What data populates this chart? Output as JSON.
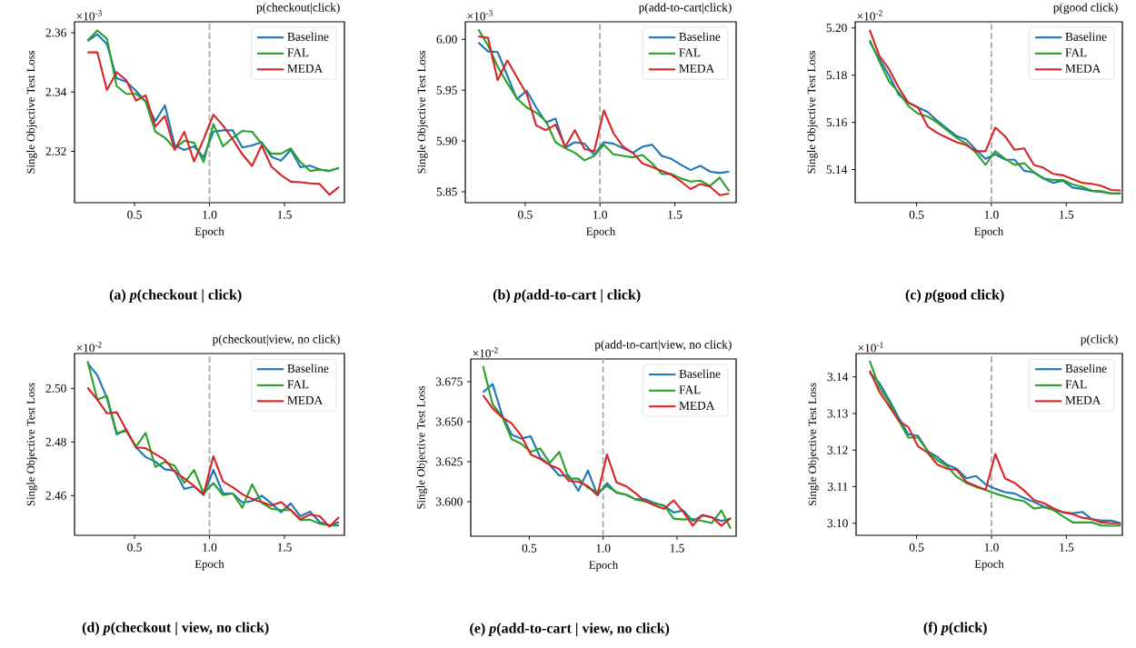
{
  "chart_data": [
    {
      "type": "line",
      "title": "(a) *p*(checkout | click)",
      "subtitle": "p(checkout|click)",
      "xlabel": "Epoch",
      "ylabel": "Single Objective Test Loss",
      "annotations": [
        "×10$^{-3}$"
      ],
      "x": [
        0.187,
        0.252,
        0.316,
        0.381,
        0.445,
        0.51,
        0.574,
        0.639,
        0.703,
        0.768,
        0.832,
        0.897,
        0.961,
        1.026,
        1.09,
        1.155,
        1.219,
        1.284,
        1.348,
        1.413,
        1.477,
        1.542,
        1.606,
        1.671,
        1.735,
        1.8,
        1.864
      ],
      "series": [
        {
          "name": "Baseline",
          "color": "#1f77b4",
          "values": [
            2.3572,
            2.3595,
            2.3562,
            2.3447,
            2.3435,
            2.3404,
            2.3368,
            2.3302,
            2.3355,
            2.322,
            2.3205,
            2.3217,
            2.318,
            2.3267,
            2.3271,
            2.3271,
            2.3213,
            2.322,
            2.3231,
            2.3182,
            2.3169,
            2.3205,
            2.3147,
            2.3152,
            2.3139,
            2.3134,
            2.3144
          ]
        },
        {
          "name": "FAL",
          "color": "#2ca02c",
          "values": [
            2.3574,
            2.3608,
            2.358,
            2.342,
            2.3394,
            2.3394,
            2.3368,
            2.3266,
            2.3246,
            2.321,
            2.3236,
            2.3229,
            2.3164,
            2.3292,
            2.3217,
            2.3246,
            2.3269,
            2.3266,
            2.3226,
            2.3192,
            2.3192,
            2.321,
            2.3164,
            2.3134,
            2.3139,
            2.3134,
            2.3144
          ]
        },
        {
          "name": "MEDA",
          "color": "#d62728",
          "values": [
            2.3534,
            2.3534,
            2.3407,
            2.3467,
            2.344,
            2.3371,
            2.3389,
            2.3284,
            2.3319,
            2.3205,
            2.3266,
            2.3166,
            2.3241,
            2.3324,
            2.3287,
            2.3241,
            2.319,
            2.3151,
            2.322,
            2.3149,
            2.312,
            2.3098,
            2.3096,
            2.3092,
            2.309,
            2.3054,
            2.308
          ]
        }
      ],
      "xlim": [
        0.1,
        1.9
      ],
      "ylim": [
        2.3027,
        2.3637
      ],
      "xticks": [
        {
          "value": 0.5,
          "label": "0.5"
        },
        {
          "value": 1.0,
          "label": "1.0"
        },
        {
          "value": 1.5,
          "label": "1.5"
        }
      ],
      "yticks": [
        {
          "value": 2.32,
          "label": "2.32"
        },
        {
          "value": 2.34,
          "label": "2.34"
        },
        {
          "value": 2.36,
          "label": "2.36"
        }
      ],
      "legend": "top right",
      "ref_lines": [
        {
          "axis": "x",
          "value": 1.0,
          "color": "#b0b0b0",
          "line_style": "dashed"
        }
      ]
    },
    {
      "type": "line",
      "title": "(b) *p*(add-to-cart | click)",
      "subtitle": "p(add-to-cart|click)",
      "xlabel": "Epoch",
      "ylabel": "Single Objective Test Loss",
      "annotations": [
        "×10$^{-3}$"
      ],
      "x": [
        0.187,
        0.252,
        0.316,
        0.381,
        0.445,
        0.51,
        0.574,
        0.639,
        0.703,
        0.768,
        0.832,
        0.897,
        0.961,
        1.026,
        1.09,
        1.155,
        1.219,
        1.284,
        1.348,
        1.413,
        1.477,
        1.542,
        1.606,
        1.671,
        1.735,
        1.8,
        1.864
      ],
      "series": [
        {
          "name": "Baseline",
          "color": "#1f77b4",
          "values": [
            5.997,
            5.9881,
            5.9875,
            5.9643,
            5.9411,
            5.9494,
            5.933,
            5.9182,
            5.922,
            5.8934,
            5.8988,
            5.8973,
            5.8863,
            5.8988,
            5.8973,
            5.8929,
            5.8884,
            5.8943,
            5.8964,
            5.8854,
            5.8824,
            5.8765,
            5.8714,
            5.8756,
            5.8699,
            5.8685,
            5.8699
          ]
        },
        {
          "name": "FAL",
          "color": "#2ca02c",
          "values": [
            6.0098,
            5.994,
            5.9732,
            5.9568,
            5.942,
            5.933,
            5.928,
            5.9196,
            5.8988,
            5.8929,
            5.8884,
            5.881,
            5.8854,
            5.8964,
            5.8869,
            5.8854,
            5.8839,
            5.8863,
            5.878,
            5.8676,
            5.8676,
            5.8631,
            5.8601,
            5.861,
            5.8557,
            5.864,
            5.8506
          ]
        },
        {
          "name": "MEDA",
          "color": "#d62728",
          "values": [
            6.003,
            6.0015,
            5.9598,
            5.9792,
            5.9628,
            5.9464,
            5.9152,
            5.9107,
            5.9161,
            5.8943,
            5.9107,
            5.892,
            5.8899,
            5.9301,
            5.9077,
            5.8943,
            5.8884,
            5.878,
            5.8744,
            5.8705,
            5.8667,
            5.8601,
            5.8527,
            5.8577,
            5.8551,
            5.8467,
            5.8482
          ]
        }
      ],
      "xlim": [
        0.1,
        1.91
      ],
      "ylim": [
        5.8393,
        6.0173
      ],
      "xticks": [
        {
          "value": 0.5,
          "label": "0.5"
        },
        {
          "value": 1.0,
          "label": "1.0"
        },
        {
          "value": 1.5,
          "label": "1.5"
        }
      ],
      "yticks": [
        {
          "value": 5.85,
          "label": "5.85"
        },
        {
          "value": 5.9,
          "label": "5.90"
        },
        {
          "value": 5.95,
          "label": "5.95"
        },
        {
          "value": 6.0,
          "label": "6.00"
        }
      ],
      "legend": "top right",
      "ref_lines": [
        {
          "axis": "x",
          "value": 1.0,
          "color": "#b0b0b0",
          "line_style": "dashed"
        }
      ]
    },
    {
      "type": "line",
      "title": "(c) *p*(good click)",
      "subtitle": "p(good click)",
      "xlabel": "Epoch",
      "ylabel": "Single Objective Test Loss",
      "annotations": [
        "×10$^{-2}$"
      ],
      "x": [
        0.187,
        0.252,
        0.316,
        0.381,
        0.445,
        0.51,
        0.574,
        0.639,
        0.703,
        0.768,
        0.832,
        0.897,
        0.961,
        1.026,
        1.09,
        1.155,
        1.219,
        1.284,
        1.348,
        1.413,
        1.477,
        1.542,
        1.606,
        1.671,
        1.735,
        1.8,
        1.864
      ],
      "series": [
        {
          "name": "Baseline",
          "color": "#1f77b4",
          "values": [
            5.1941,
            5.1868,
            5.18,
            5.1717,
            5.1685,
            5.1663,
            5.1644,
            5.1606,
            5.1574,
            5.1542,
            5.1527,
            5.1484,
            5.1446,
            5.1465,
            5.1443,
            5.1442,
            5.1395,
            5.1388,
            5.1363,
            5.1344,
            5.1353,
            5.1324,
            5.1318,
            5.1309,
            5.1305,
            5.1299,
            5.1299
          ]
        },
        {
          "name": "FAL",
          "color": "#2ca02c",
          "values": [
            5.1949,
            5.1857,
            5.1774,
            5.1727,
            5.167,
            5.1637,
            5.1625,
            5.1599,
            5.1567,
            5.1535,
            5.151,
            5.1471,
            5.142,
            5.1478,
            5.1446,
            5.142,
            5.1427,
            5.1388,
            5.1363,
            5.1356,
            5.1356,
            5.1337,
            5.1327,
            5.1311,
            5.1309,
            5.1299,
            5.1299
          ]
        },
        {
          "name": "MEDA",
          "color": "#d62728",
          "values": [
            5.1992,
            5.1881,
            5.1826,
            5.1747,
            5.1683,
            5.1663,
            5.1583,
            5.1555,
            5.1535,
            5.1516,
            5.1504,
            5.1478,
            5.1478,
            5.1578,
            5.1542,
            5.1484,
            5.149,
            5.142,
            5.1408,
            5.1382,
            5.1376,
            5.136,
            5.1344,
            5.134,
            5.1331,
            5.1314,
            5.1312
          ]
        }
      ],
      "xlim": [
        0.09,
        1.875
      ],
      "ylim": [
        5.126,
        5.2026
      ],
      "xticks": [
        {
          "value": 0.5,
          "label": "0.5"
        },
        {
          "value": 1.0,
          "label": "1.0"
        },
        {
          "value": 1.5,
          "label": "1.5"
        }
      ],
      "yticks": [
        {
          "value": 5.14,
          "label": "5.14"
        },
        {
          "value": 5.16,
          "label": "5.16"
        },
        {
          "value": 5.18,
          "label": "5.18"
        },
        {
          "value": 5.2,
          "label": "5.20"
        }
      ],
      "legend": "top right",
      "ref_lines": [
        {
          "axis": "x",
          "value": 1.0,
          "color": "#b0b0b0",
          "line_style": "dashed"
        }
      ]
    },
    {
      "type": "line",
      "title": "(d) *p*(checkout | view, no click)",
      "subtitle": "p(checkout|view, no click)",
      "xlabel": "Epoch",
      "ylabel": "Single Objective Test Loss",
      "annotations": [
        "×10$^{-2}$"
      ],
      "x": [
        0.187,
        0.252,
        0.316,
        0.381,
        0.445,
        0.51,
        0.574,
        0.639,
        0.703,
        0.768,
        0.832,
        0.897,
        0.961,
        1.026,
        1.09,
        1.155,
        1.219,
        1.284,
        1.348,
        1.413,
        1.477,
        1.542,
        1.606,
        1.671,
        1.735,
        1.8,
        1.864
      ],
      "series": [
        {
          "name": "Baseline",
          "color": "#1f77b4",
          "values": [
            2.5094,
            2.5049,
            2.4964,
            2.4828,
            2.4847,
            2.478,
            2.4744,
            2.4727,
            2.4698,
            2.4693,
            2.4625,
            2.4634,
            2.4602,
            2.4696,
            2.4608,
            2.4608,
            2.4574,
            2.458,
            2.46,
            2.4571,
            2.4538,
            2.4571,
            2.4523,
            2.454,
            2.4501,
            2.4489,
            2.4501
          ]
        },
        {
          "name": "FAL",
          "color": "#2ca02c",
          "values": [
            2.5102,
            2.4958,
            2.4972,
            2.4834,
            2.484,
            2.4783,
            2.4834,
            2.4707,
            2.4726,
            2.4711,
            2.4647,
            2.4696,
            2.4608,
            2.4647,
            2.4602,
            2.4608,
            2.4555,
            2.4642,
            2.4574,
            2.4551,
            2.4546,
            2.4546,
            2.4509,
            2.451,
            2.4495,
            2.4489,
            2.4489
          ]
        },
        {
          "name": "MEDA",
          "color": "#d62728",
          "values": [
            2.5003,
            2.4958,
            2.4907,
            2.4911,
            2.4845,
            2.478,
            2.4777,
            2.4755,
            2.4734,
            2.4689,
            2.4664,
            2.4636,
            2.4605,
            2.4747,
            2.4653,
            2.4631,
            2.4605,
            2.4588,
            2.4576,
            2.4563,
            2.4576,
            2.4546,
            2.4512,
            2.4529,
            2.4523,
            2.4484,
            2.452
          ]
        }
      ],
      "xlim": [
        0.1,
        1.9
      ],
      "ylim": [
        2.4452,
        2.513
      ],
      "xticks": [
        {
          "value": 0.5,
          "label": "0.5"
        },
        {
          "value": 1.0,
          "label": "1.0"
        },
        {
          "value": 1.5,
          "label": "1.5"
        }
      ],
      "yticks": [
        {
          "value": 2.46,
          "label": "2.46"
        },
        {
          "value": 2.48,
          "label": "2.48"
        },
        {
          "value": 2.5,
          "label": "2.50"
        }
      ],
      "legend": "top right",
      "ref_lines": [
        {
          "axis": "x",
          "value": 1.0,
          "color": "#b0b0b0",
          "line_style": "dashed"
        }
      ]
    },
    {
      "type": "line",
      "title": "(e) *p*(add-to-cart | view, no click)",
      "subtitle": "p(add-to-cart|view, no click)",
      "xlabel": "Epoch",
      "ylabel": "Single Objective Test Loss",
      "annotations": [
        "×10$^{-2}$"
      ],
      "x": [
        0.187,
        0.252,
        0.316,
        0.381,
        0.445,
        0.51,
        0.574,
        0.639,
        0.703,
        0.768,
        0.832,
        0.897,
        0.961,
        1.026,
        1.09,
        1.155,
        1.219,
        1.284,
        1.348,
        1.413,
        1.477,
        1.542,
        1.606,
        1.671,
        1.735,
        1.8,
        1.864
      ],
      "series": [
        {
          "name": "Baseline",
          "color": "#1f77b4",
          "values": [
            3.6684,
            3.6735,
            3.6542,
            3.6419,
            3.6394,
            3.6409,
            3.6277,
            3.6229,
            3.6163,
            3.6163,
            3.6068,
            3.6195,
            3.604,
            3.6116,
            3.6055,
            3.6044,
            3.6015,
            3.6015,
            3.5992,
            3.5973,
            3.5932,
            3.5945,
            3.5879,
            3.5913,
            3.5902,
            3.5879,
            3.5894
          ]
        },
        {
          "name": "FAL",
          "color": "#2ca02c",
          "values": [
            3.6848,
            3.6608,
            3.6532,
            3.639,
            3.6362,
            3.6311,
            3.6333,
            3.6242,
            3.6311,
            3.6144,
            3.6144,
            3.6087,
            3.6059,
            3.6097,
            3.6059,
            3.6044,
            3.6015,
            3.6002,
            3.5987,
            3.5977,
            3.5894,
            3.5888,
            3.5892,
            3.5879,
            3.5866,
            3.5945,
            3.5831
          ]
        },
        {
          "name": "MEDA",
          "color": "#d62728",
          "values": [
            3.6665,
            3.6583,
            3.6527,
            3.6489,
            3.6413,
            3.6295,
            3.6267,
            3.6229,
            3.6205,
            3.6129,
            3.6125,
            3.6097,
            3.604,
            3.6295,
            3.6121,
            3.6097,
            3.6053,
            3.6002,
            3.5977,
            3.5955,
            3.6008,
            3.5936,
            3.585,
            3.5917,
            3.5903,
            3.585,
            3.5898
          ]
        }
      ],
      "xlim": [
        0.104,
        1.9
      ],
      "ylim": [
        3.5784,
        3.6892
      ],
      "xticks": [
        {
          "value": 0.5,
          "label": "0.5"
        },
        {
          "value": 1.0,
          "label": "1.0"
        },
        {
          "value": 1.5,
          "label": "1.5"
        }
      ],
      "yticks": [
        {
          "value": 3.6,
          "label": "3.600"
        },
        {
          "value": 3.625,
          "label": "3.625"
        },
        {
          "value": 3.65,
          "label": "3.650"
        },
        {
          "value": 3.675,
          "label": "3.675"
        }
      ],
      "legend": "top right",
      "ref_lines": [
        {
          "axis": "x",
          "value": 1.0,
          "color": "#b0b0b0",
          "line_style": "dashed"
        }
      ]
    },
    {
      "type": "line",
      "title": "(f) *p*(click)",
      "subtitle": "p(click)",
      "xlabel": "Epoch",
      "ylabel": "Single Objective Test Loss",
      "annotations": [
        "×10$^{-1}$"
      ],
      "x": [
        0.187,
        0.252,
        0.316,
        0.381,
        0.445,
        0.51,
        0.574,
        0.639,
        0.703,
        0.768,
        0.832,
        0.897,
        0.961,
        1.026,
        1.09,
        1.155,
        1.219,
        1.284,
        1.348,
        1.413,
        1.477,
        1.542,
        1.606,
        1.671,
        1.735,
        1.8,
        1.864
      ],
      "series": [
        {
          "name": "Baseline",
          "color": "#1f77b4",
          "values": [
            3.1412,
            3.1383,
            3.1338,
            3.1288,
            3.1243,
            3.1239,
            3.1197,
            3.1181,
            3.116,
            3.1149,
            3.1123,
            3.1129,
            3.1106,
            3.1094,
            3.1085,
            3.1081,
            3.1069,
            3.1058,
            3.1046,
            3.1038,
            3.103,
            3.1027,
            3.1031,
            3.1011,
            3.1007,
            3.1007,
            3.1
          ]
        },
        {
          "name": "FAL",
          "color": "#2ca02c",
          "values": [
            3.1444,
            3.1371,
            3.1331,
            3.128,
            3.1234,
            3.1234,
            3.1197,
            3.1172,
            3.1156,
            3.1127,
            3.111,
            3.1099,
            3.1091,
            3.1081,
            3.1073,
            3.1065,
            3.106,
            3.104,
            3.1044,
            3.1036,
            3.1019,
            3.1002,
            3.1002,
            3.1002,
            3.0994,
            3.0993,
            3.0994
          ]
        },
        {
          "name": "MEDA",
          "color": "#d62728",
          "values": [
            3.1417,
            3.1359,
            3.132,
            3.128,
            3.1263,
            3.121,
            3.1193,
            3.116,
            3.1149,
            3.1146,
            3.1113,
            3.1102,
            3.1091,
            3.1189,
            3.1123,
            3.111,
            3.1089,
            3.1063,
            3.1055,
            3.1041,
            3.103,
            3.1025,
            3.1015,
            3.1011,
            3.1002,
            3.1,
            3.1
          ]
        }
      ],
      "xlim": [
        0.096,
        1.874
      ],
      "ylim": [
        3.0967,
        3.1464
      ],
      "xticks": [
        {
          "value": 0.5,
          "label": "0.5"
        },
        {
          "value": 1.0,
          "label": "1.0"
        },
        {
          "value": 1.5,
          "label": "1.5"
        }
      ],
      "yticks": [
        {
          "value": 3.1,
          "label": "3.10"
        },
        {
          "value": 3.11,
          "label": "3.11"
        },
        {
          "value": 3.12,
          "label": "3.12"
        },
        {
          "value": 3.13,
          "label": "3.13"
        },
        {
          "value": 3.14,
          "label": "3.14"
        }
      ],
      "legend": "top right",
      "ref_lines": [
        {
          "axis": "x",
          "value": 1.0,
          "color": "#b0b0b0",
          "line_style": "dashed"
        }
      ]
    }
  ]
}
